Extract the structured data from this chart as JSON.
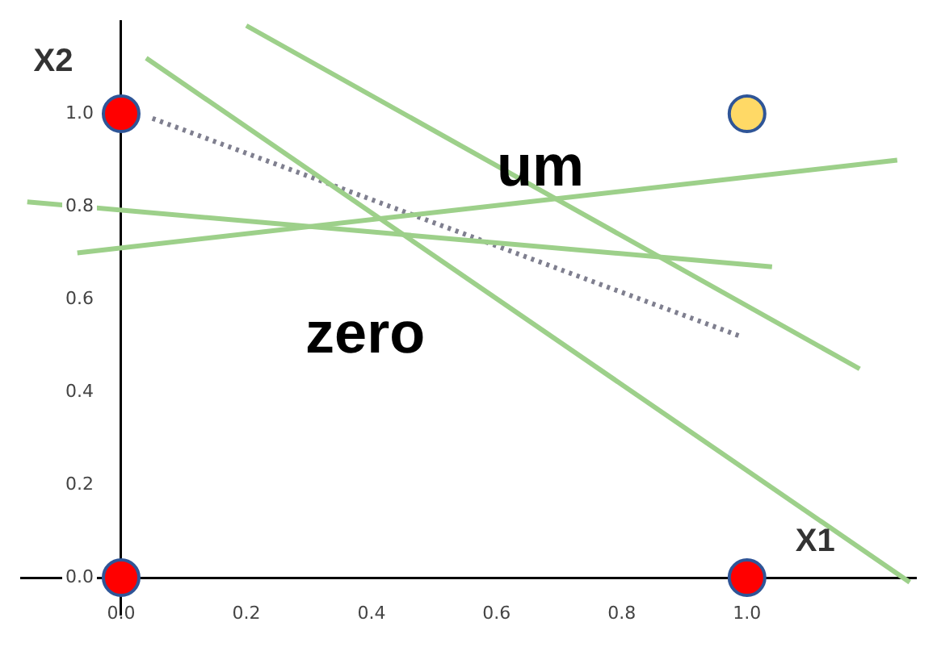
{
  "chart_data": {
    "type": "scatter",
    "xlabel": "X1",
    "ylabel": "X2",
    "xlim": [
      -0.16,
      1.27
    ],
    "ylim": [
      -0.08,
      1.2
    ],
    "xticks": [
      {
        "value": 0,
        "label": "0.0"
      },
      0.2,
      0.4,
      0.6,
      0.8,
      {
        "value": 1,
        "label": "1.0"
      }
    ],
    "yticks": [
      {
        "value": 0,
        "label": "0.0"
      },
      0.2,
      0.4,
      0.6,
      0.8,
      {
        "value": 1,
        "label": "1.0"
      }
    ],
    "grid": false,
    "legend": false,
    "series": [
      {
        "type": "line",
        "color": "#9dd08a",
        "x": [
          0.2,
          1.18
        ],
        "values": [
          1.19,
          0.45
        ]
      },
      {
        "type": "line",
        "color": "#9dd08a",
        "x": [
          0.04,
          1.26
        ],
        "values": [
          1.12,
          -0.01
        ]
      },
      {
        "type": "line",
        "color": "#9dd08a",
        "x": [
          -0.07,
          1.24
        ],
        "values": [
          0.7,
          0.9
        ]
      },
      {
        "type": "line",
        "color": "#9dd08a",
        "x": [
          -0.15,
          1.04
        ],
        "values": [
          0.81,
          0.67
        ]
      },
      {
        "type": "line",
        "color": "#7f7f8f",
        "line_style": "dotted",
        "x": [
          0.05,
          0.99
        ],
        "values": [
          0.99,
          0.52
        ]
      },
      {
        "type": "scatter",
        "marker": "circle",
        "x": [
          0,
          0,
          1,
          1
        ],
        "values": [
          1,
          0,
          0,
          1
        ],
        "colors": [
          "#ff0000",
          "#ff0000",
          "#ff0000",
          "#ffd966"
        ]
      }
    ],
    "annotations": [
      "um",
      "zero"
    ]
  }
}
